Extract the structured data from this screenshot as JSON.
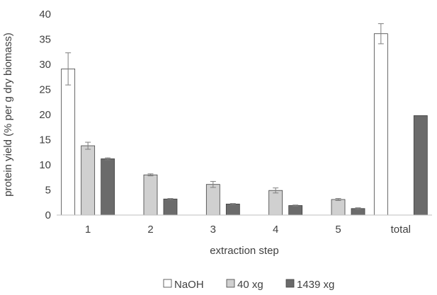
{
  "chart_data": {
    "type": "bar",
    "title": "",
    "xlabel": "extraction step",
    "ylabel": "protein yield (% per g dry biomass)",
    "ylim": [
      0,
      40
    ],
    "yticks": [
      0,
      5,
      10,
      15,
      20,
      25,
      30,
      35,
      40
    ],
    "grid": false,
    "legend_position": "bottom",
    "categories": [
      "1",
      "2",
      "3",
      "4",
      "5",
      "total"
    ],
    "series": [
      {
        "name": "NaOH",
        "color": "#ffffff",
        "stroke": "#404040",
        "values": [
          29.1,
          null,
          null,
          null,
          null,
          36.1
        ],
        "errors": [
          3.2,
          null,
          null,
          null,
          null,
          2.0
        ]
      },
      {
        "name": "40 xg",
        "color": "#d0d0d0",
        "stroke": "#404040",
        "values": [
          13.8,
          8.0,
          6.1,
          4.9,
          3.1,
          null
        ],
        "errors": [
          0.7,
          0.2,
          0.6,
          0.5,
          0.2,
          null
        ]
      },
      {
        "name": "1439 xg",
        "color": "#6b6b6b",
        "stroke": "#404040",
        "values": [
          11.2,
          3.2,
          2.2,
          1.9,
          1.3,
          19.8
        ],
        "errors": [
          0.2,
          0.1,
          0.1,
          0.1,
          0.15,
          null
        ]
      }
    ]
  }
}
